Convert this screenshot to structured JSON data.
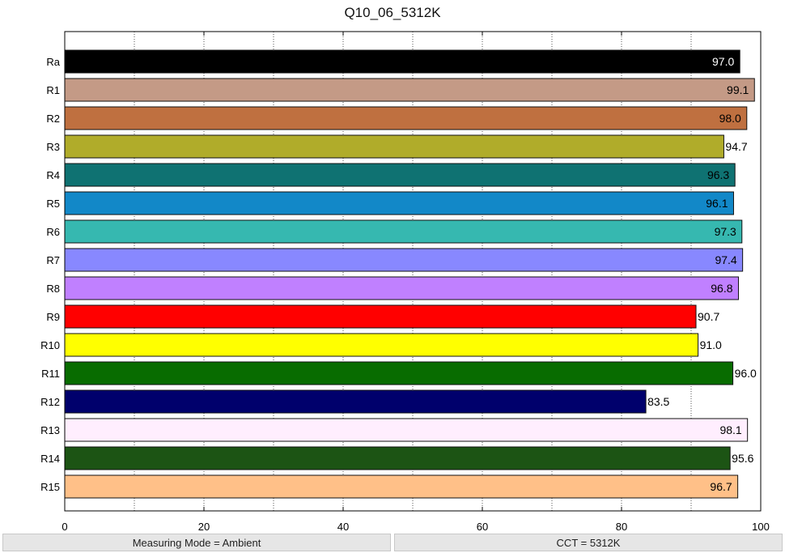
{
  "chart_data": {
    "type": "bar",
    "orientation": "horizontal",
    "title": "Q10_06_5312K",
    "xlabel": "",
    "ylabel": "",
    "xlim": [
      0,
      100
    ],
    "xticks": [
      0,
      20,
      40,
      60,
      80,
      100
    ],
    "minor_grid_every": 10,
    "grid": true,
    "categories": [
      "Ra",
      "R1",
      "R2",
      "R3",
      "R4",
      "R5",
      "R6",
      "R7",
      "R8",
      "R9",
      "R10",
      "R11",
      "R12",
      "R13",
      "R14",
      "R15"
    ],
    "values": [
      97.0,
      99.1,
      98.0,
      94.7,
      96.3,
      96.1,
      97.3,
      97.4,
      96.8,
      90.7,
      91.0,
      96.0,
      83.5,
      98.1,
      95.6,
      96.7
    ],
    "value_labels": [
      "97.0",
      "99.1",
      "98.0",
      "94.7",
      "96.3",
      "96.1",
      "97.3",
      "97.4",
      "96.8",
      "90.7",
      "91.0",
      "96.0",
      "83.5",
      "98.1",
      "95.6",
      "96.7"
    ],
    "colors": [
      "#000000",
      "#c49a86",
      "#bf7040",
      "#b0ac2a",
      "#0f7272",
      "#1288c8",
      "#36b8b0",
      "#8888ff",
      "#c080ff",
      "#ff0000",
      "#ffff00",
      "#086c00",
      "#00006c",
      "#ffeefe",
      "#1c5414",
      "#ffc088"
    ],
    "label_colors": [
      "#ffffff",
      "#000000",
      "#000000",
      "#000000",
      "#000000",
      "#000000",
      "#000000",
      "#000000",
      "#000000",
      "#000000",
      "#000000",
      "#000000",
      "#000000",
      "#000000",
      "#000000",
      "#000000"
    ]
  },
  "status": {
    "left": "Measuring Mode = Ambient",
    "right": "CCT = 5312K"
  }
}
